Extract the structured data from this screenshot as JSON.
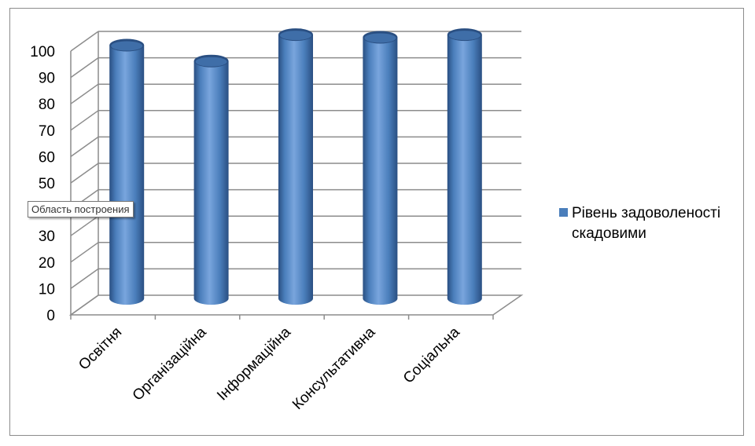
{
  "chart_data": {
    "type": "bar",
    "style": "3d-cylinder",
    "categories": [
      "Освітня",
      "Організаційна",
      "Інформаційна",
      "Консультативна",
      "Соціальна"
    ],
    "series": [
      {
        "name": "Рівень задоволеності скадовими",
        "values": [
          96,
          90,
          100,
          99,
          100
        ]
      }
    ],
    "ylim": [
      0,
      100
    ],
    "yticks": [
      0,
      10,
      20,
      30,
      40,
      50,
      60,
      70,
      80,
      90,
      100
    ],
    "grid": true,
    "legend_position": "right",
    "colors": {
      "bar": "#4a7ebb",
      "bar_dark": "#2a4f82",
      "bar_light": "#79a5dd",
      "grid": "#8c8c8c"
    }
  },
  "tooltip": {
    "text": "Область построения"
  }
}
